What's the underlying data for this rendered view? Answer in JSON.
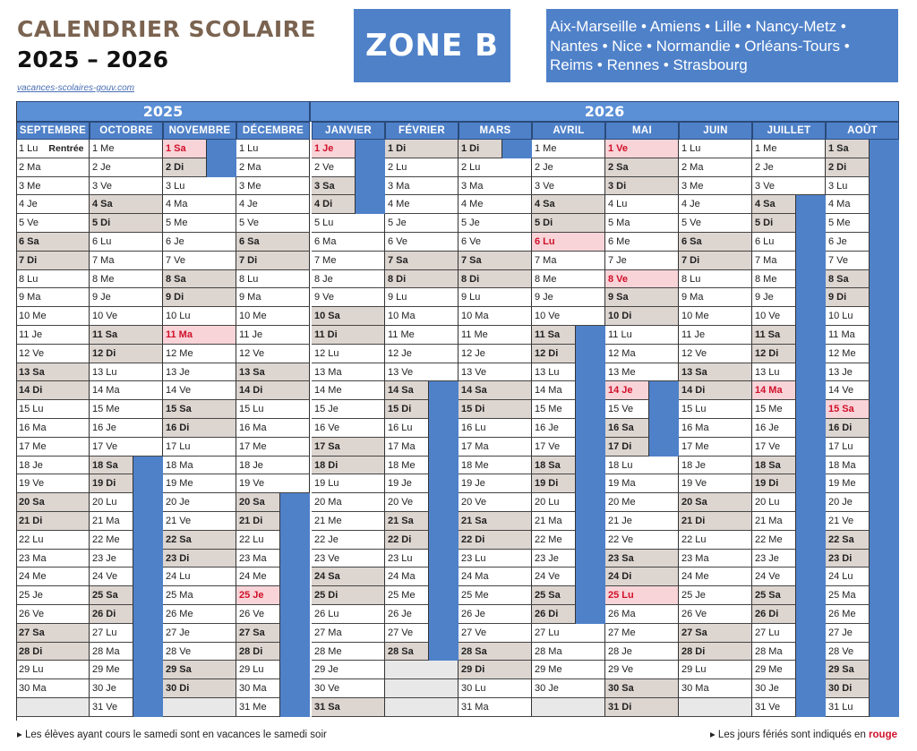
{
  "header": {
    "title": "CALENDRIER SCOLAIRE",
    "years": "2025 – 2026",
    "link": "vacances-scolaires-gouv.com",
    "zone": "ZONE B",
    "cities": "Aix-Marseille • Amiens • Lille • Nancy-Metz • Nantes • Nice • Normandie • Orléans-Tours • Reims • Rennes • Strasbourg"
  },
  "colors": {
    "accent": "#4f81c9",
    "weekend": "#ddd5d0",
    "holiday": "#f8d4d8",
    "holiday_text": "#d0102a"
  },
  "years": [
    "2025",
    "2026"
  ],
  "months": [
    {
      "name": "SEPTEMBRE",
      "year": 2025,
      "days": 30,
      "start": 0,
      "holidays": [],
      "vac": []
    },
    {
      "name": "OCTOBRE",
      "year": 2025,
      "days": 31,
      "start": 2,
      "holidays": [],
      "vac": [
        [
          18,
          31
        ]
      ]
    },
    {
      "name": "NOVEMBRE",
      "year": 2025,
      "days": 30,
      "start": 5,
      "holidays": [
        1,
        11
      ],
      "vac": [
        [
          1,
          2
        ]
      ]
    },
    {
      "name": "DÉCEMBRE",
      "year": 2025,
      "days": 31,
      "start": 0,
      "holidays": [
        25
      ],
      "vac": [
        [
          20,
          31
        ]
      ]
    },
    {
      "name": "JANVIER",
      "year": 2026,
      "days": 31,
      "start": 3,
      "holidays": [
        1
      ],
      "vac": [
        [
          1,
          4
        ]
      ]
    },
    {
      "name": "FÉVRIER",
      "year": 2026,
      "days": 28,
      "start": 6,
      "holidays": [],
      "vac": [
        [
          14,
          28
        ]
      ]
    },
    {
      "name": "MARS",
      "year": 2026,
      "days": 31,
      "start": 6,
      "holidays": [],
      "vac": [
        [
          1,
          1
        ]
      ]
    },
    {
      "name": "AVRIL",
      "year": 2026,
      "days": 30,
      "start": 2,
      "holidays": [
        6
      ],
      "vac": [
        [
          11,
          26
        ]
      ]
    },
    {
      "name": "MAI",
      "year": 2026,
      "days": 31,
      "start": 4,
      "holidays": [
        1,
        8,
        14,
        25
      ],
      "vac": [
        [
          14,
          17
        ]
      ]
    },
    {
      "name": "JUIN",
      "year": 2026,
      "days": 30,
      "start": 0,
      "holidays": [],
      "vac": []
    },
    {
      "name": "JUILLET",
      "year": 2026,
      "days": 31,
      "start": 2,
      "holidays": [
        14
      ],
      "vac": [
        [
          4,
          31
        ]
      ]
    },
    {
      "name": "AOÛT",
      "year": 2026,
      "days": 31,
      "start": 5,
      "holidays": [
        15
      ],
      "vac": [
        [
          1,
          31
        ]
      ]
    }
  ],
  "weekday_abbr": [
    "Lu",
    "Ma",
    "Me",
    "Je",
    "Ve",
    "Sa",
    "Di"
  ],
  "rentree_label": "Rentrée",
  "footer": {
    "left": "▸ Les élèves ayant cours le samedi sont en vacances le samedi soir",
    "right_prefix": "▸ Les jours fériés sont indiqués en ",
    "right_red": "rouge"
  }
}
